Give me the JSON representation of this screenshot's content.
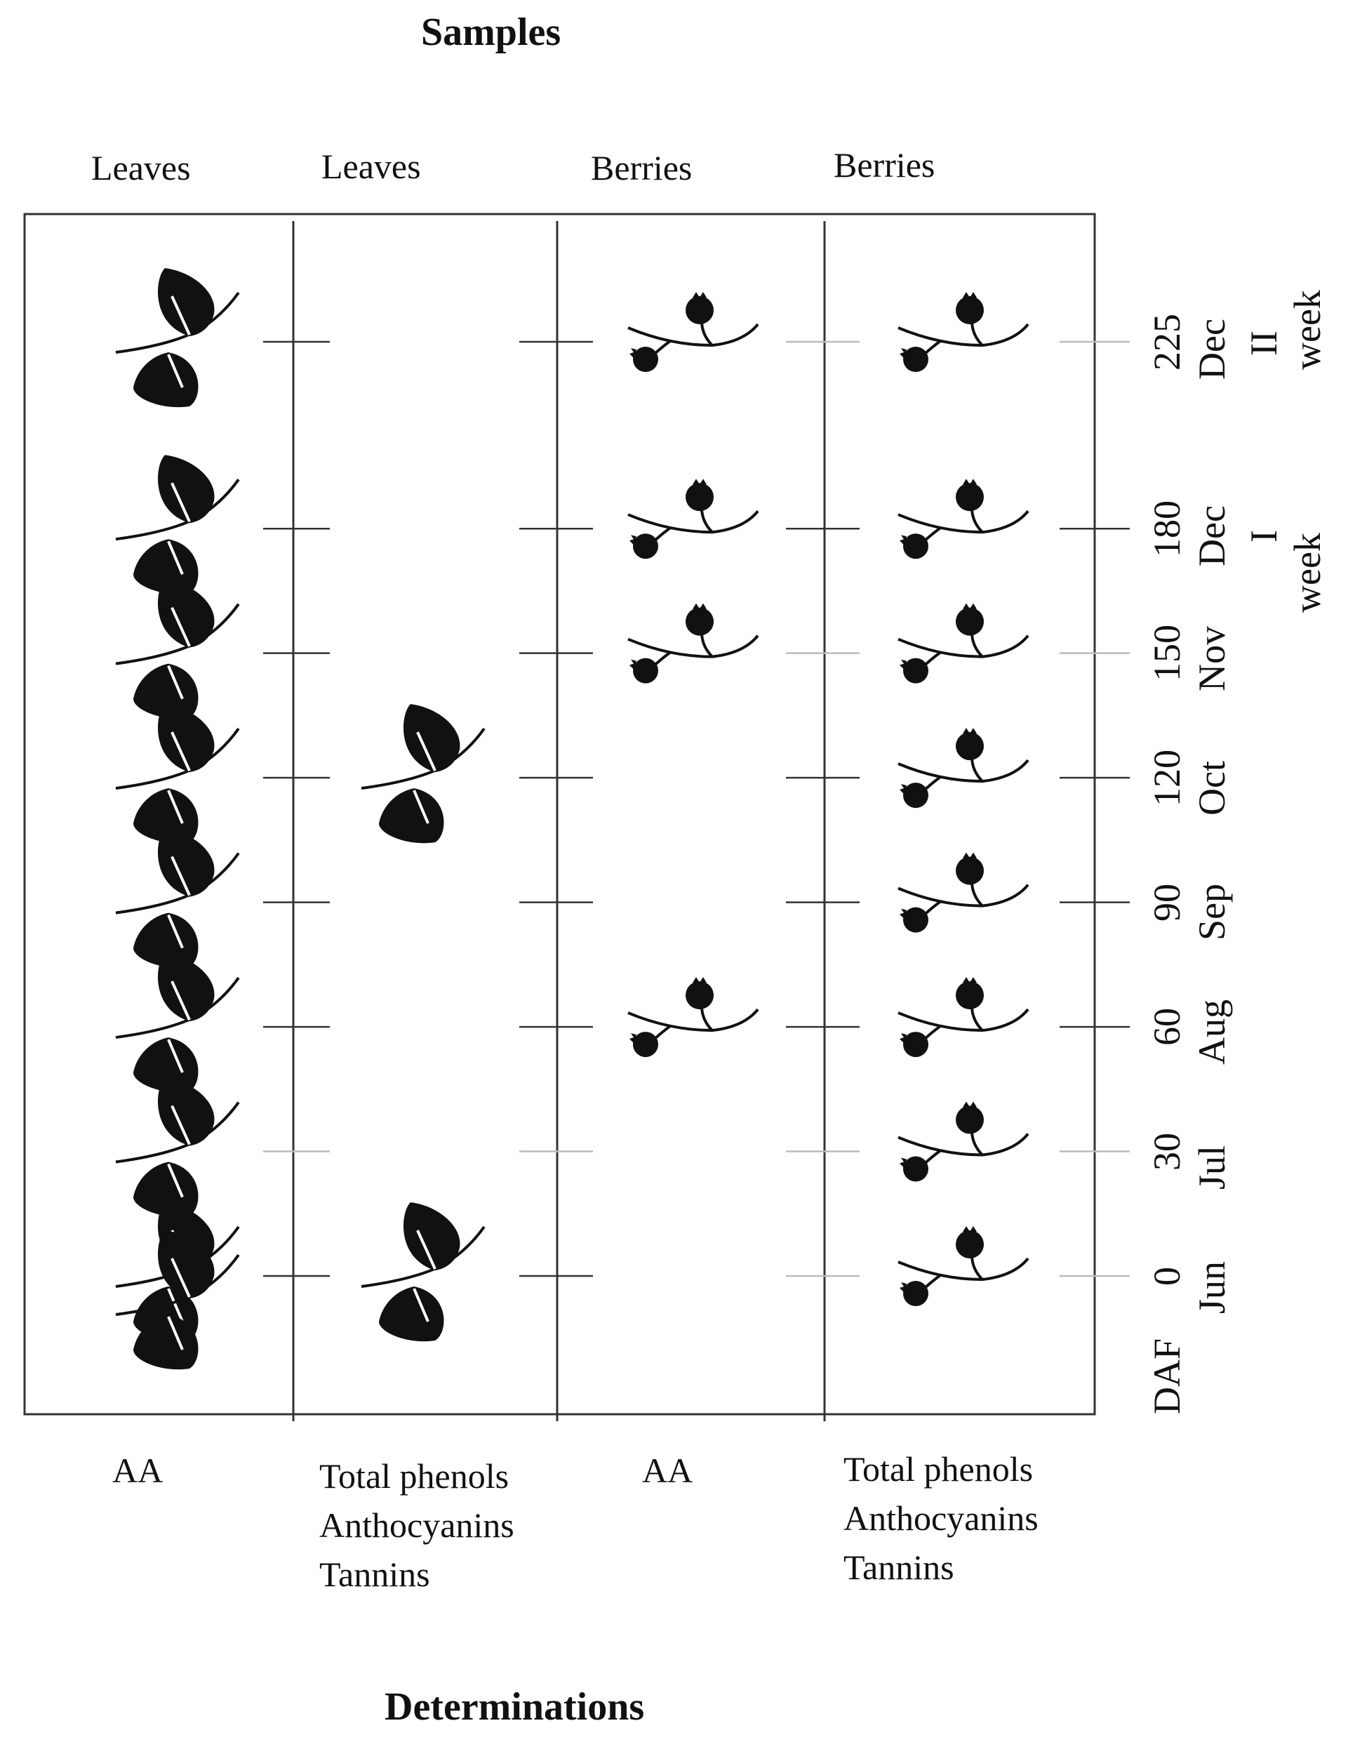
{
  "diagram": {
    "title_top": "Samples",
    "title_bottom": "Determinations",
    "columns": [
      {
        "sample": "Leaves",
        "kind": "leaf",
        "determinations": [
          "AA"
        ],
        "sampled_daf": [
          225,
          180,
          150,
          120,
          90,
          60,
          30,
          0,
          -30
        ]
      },
      {
        "sample": "Leaves",
        "kind": "leaf",
        "determinations": [
          "Total phenols",
          "Anthocyanins",
          "Tannins"
        ],
        "sampled_daf": [
          120,
          0
        ]
      },
      {
        "sample": "Berries",
        "kind": "berry",
        "determinations": [
          "AA"
        ],
        "sampled_daf": [
          225,
          180,
          150,
          60
        ]
      },
      {
        "sample": "Berries",
        "kind": "berry",
        "determinations": [
          "Total phenols",
          "Anthocyanins",
          "Tannins"
        ],
        "sampled_daf": [
          225,
          180,
          150,
          120,
          90,
          60,
          30,
          0
        ]
      }
    ],
    "axis": {
      "unit_label": "DAF",
      "rows": [
        {
          "daf": "225",
          "month": "Dec",
          "extra": "II",
          "extra2": "week"
        },
        {
          "daf": "180",
          "month": "Dec",
          "extra": "I",
          "extra2": "week"
        },
        {
          "daf": "150",
          "month": "Nov"
        },
        {
          "daf": "120",
          "month": "Oct"
        },
        {
          "daf": "90",
          "month": "Sep"
        },
        {
          "daf": "60",
          "month": "Aug"
        },
        {
          "daf": "30",
          "month": "Jul"
        },
        {
          "daf": "0",
          "month": "Jun"
        }
      ]
    },
    "colors": {
      "ink": "#111111",
      "grid": "#333333",
      "faint_tick": "#bbbbbb"
    }
  }
}
